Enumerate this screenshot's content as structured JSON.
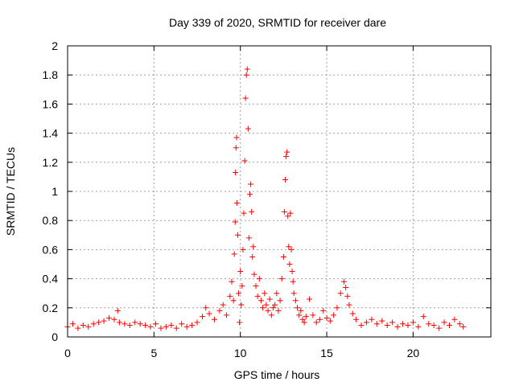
{
  "chart_data": {
    "type": "scatter",
    "title": "Day 339 of 2020, SRMTID for receiver dare",
    "xlabel": "GPS time / hours",
    "ylabel": "SRMTID / TECUs",
    "xlim": [
      0,
      24.5
    ],
    "ylim": [
      0,
      2
    ],
    "xticks": [
      0,
      5,
      10,
      15,
      20
    ],
    "xtick_labels": [
      "0",
      "5",
      "10",
      "15",
      "20"
    ],
    "yticks": [
      0,
      0.2,
      0.4,
      0.6,
      0.8,
      1,
      1.2,
      1.4,
      1.6,
      1.8,
      2
    ],
    "ytick_labels": [
      "0",
      "0.2",
      "0.4",
      "0.6",
      "0.8",
      "1",
      "1.2",
      "1.4",
      "1.6",
      "1.8",
      "2"
    ],
    "grid": true,
    "marker": "+",
    "marker_color": "#ff0000",
    "series": [
      {
        "name": "SRMTID",
        "x": [
          0.0,
          0.3,
          0.6,
          0.9,
          1.2,
          1.5,
          1.8,
          2.1,
          2.4,
          2.7,
          2.9,
          3.0,
          3.3,
          3.6,
          3.9,
          4.2,
          4.5,
          4.8,
          5.1,
          5.4,
          5.7,
          6.0,
          6.3,
          6.6,
          6.9,
          7.2,
          7.5,
          7.8,
          8.0,
          8.2,
          8.5,
          8.8,
          9.0,
          9.2,
          9.4,
          9.5,
          9.6,
          9.65,
          9.7,
          9.72,
          9.75,
          9.78,
          9.8,
          9.85,
          9.9,
          9.95,
          10.0,
          10.05,
          10.1,
          10.15,
          10.2,
          10.25,
          10.3,
          10.35,
          10.4,
          10.45,
          10.5,
          10.55,
          10.6,
          10.65,
          10.7,
          10.75,
          10.8,
          10.9,
          11.0,
          11.1,
          11.2,
          11.3,
          11.4,
          11.5,
          11.6,
          11.7,
          11.8,
          11.9,
          12.0,
          12.1,
          12.2,
          12.3,
          12.4,
          12.5,
          12.55,
          12.6,
          12.65,
          12.7,
          12.75,
          12.8,
          12.85,
          12.9,
          12.95,
          13.0,
          13.05,
          13.1,
          13.2,
          13.3,
          13.4,
          13.5,
          13.6,
          13.7,
          13.8,
          14.0,
          14.2,
          14.4,
          14.6,
          14.8,
          15.0,
          15.2,
          15.4,
          15.6,
          15.8,
          16.0,
          16.1,
          16.2,
          16.3,
          16.5,
          16.7,
          17.0,
          17.3,
          17.6,
          17.9,
          18.2,
          18.5,
          18.8,
          19.1,
          19.4,
          19.7,
          20.0,
          20.3,
          20.6,
          20.9,
          21.2,
          21.5,
          21.8,
          22.1,
          22.4,
          22.7,
          22.9
        ],
        "values": [
          0.07,
          0.09,
          0.06,
          0.08,
          0.07,
          0.09,
          0.1,
          0.11,
          0.13,
          0.12,
          0.18,
          0.1,
          0.09,
          0.08,
          0.1,
          0.09,
          0.08,
          0.07,
          0.09,
          0.06,
          0.07,
          0.08,
          0.06,
          0.09,
          0.07,
          0.08,
          0.1,
          0.14,
          0.2,
          0.16,
          0.12,
          0.18,
          0.22,
          0.15,
          0.28,
          0.38,
          0.25,
          0.57,
          0.79,
          1.13,
          1.3,
          1.37,
          0.92,
          0.7,
          0.3,
          0.1,
          0.45,
          0.22,
          0.35,
          0.6,
          0.85,
          1.21,
          1.64,
          1.8,
          1.84,
          1.43,
          0.68,
          0.98,
          1.05,
          0.86,
          0.55,
          0.62,
          0.43,
          0.35,
          0.28,
          0.4,
          0.25,
          0.2,
          0.3,
          0.22,
          0.18,
          0.26,
          0.15,
          0.2,
          0.22,
          0.3,
          0.18,
          0.25,
          0.4,
          0.55,
          0.86,
          1.08,
          1.24,
          1.27,
          0.83,
          0.62,
          0.5,
          0.85,
          0.6,
          0.45,
          0.38,
          0.3,
          0.25,
          0.2,
          0.15,
          0.18,
          0.12,
          0.1,
          0.14,
          0.26,
          0.15,
          0.1,
          0.12,
          0.18,
          0.13,
          0.11,
          0.15,
          0.2,
          0.3,
          0.38,
          0.34,
          0.28,
          0.22,
          0.16,
          0.12,
          0.08,
          0.1,
          0.12,
          0.09,
          0.11,
          0.08,
          0.1,
          0.07,
          0.09,
          0.08,
          0.1,
          0.07,
          0.14,
          0.09,
          0.08,
          0.06,
          0.1,
          0.08,
          0.12,
          0.09,
          0.07
        ]
      }
    ]
  }
}
